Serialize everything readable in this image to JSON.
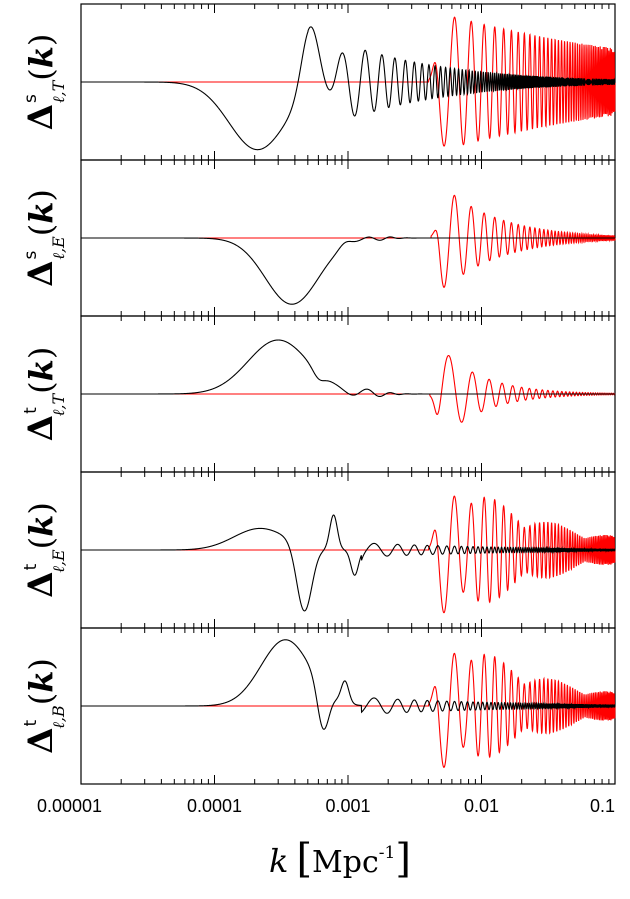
{
  "chart_data": {
    "type": "line",
    "x_scale": "log",
    "xlim": [
      1e-05,
      0.1
    ],
    "x_ticks": [
      "0.00001",
      "0.0001",
      "0.001",
      "0.01",
      "0.1"
    ],
    "xlabel": {
      "var": "k",
      "unit": "Mpc",
      "unit_sup": "-1"
    },
    "colors": {
      "series_black": "#000000",
      "series_red": "#ff0000",
      "frame": "#000000"
    },
    "panels": [
      {
        "label": "Δ",
        "sup": "s",
        "sub": "ℓ,T",
        "arg": "(k)",
        "series": [
          {
            "color": "#000000",
            "envelope": {
              "dip_k": 0.00021,
              "dip_depth": -0.94,
              "peak_k": 0.00052,
              "peak_amp": 0.92,
              "oscillation_start_k": 0.0008,
              "decay_to_k": 0.1
            }
          },
          {
            "color": "#ff0000",
            "envelope": {
              "onset_k": 0.0045,
              "dip_depth": -0.2,
              "max_amp": 0.9,
              "decay_to_k": 0.1
            }
          }
        ]
      },
      {
        "label": "Δ",
        "sup": "s",
        "sub": "ℓ,E",
        "arg": "(k)",
        "series": [
          {
            "color": "#000000",
            "envelope": {
              "dip_k": 0.00038,
              "dip_depth": -0.92,
              "peak_k": 0.00095,
              "peak_amp": 0.06,
              "decay_to_k": 0.003
            }
          },
          {
            "color": "#ff0000",
            "envelope": {
              "onset_k": 0.0047,
              "dip_depth": -0.9,
              "max_amp": 0.8,
              "decay_to_k": 0.05
            }
          }
        ]
      },
      {
        "label": "Δ",
        "sup": "t",
        "sub": "ℓ,T",
        "arg": "(k)",
        "series": [
          {
            "color": "#000000",
            "envelope": {
              "peak_k": 0.0003,
              "peak_amp": 0.75,
              "dip_k": 0.0006,
              "dip_depth": -0.1,
              "decay_to_k": 0.003
            }
          },
          {
            "color": "#ff0000",
            "envelope": {
              "onset_k": 0.0046,
              "peak_amp": 0.72,
              "dip_depth": -0.48,
              "decay_to_k": 0.015
            }
          }
        ]
      },
      {
        "label": "Δ",
        "sup": "t",
        "sub": "ℓ,E",
        "arg": "(k)",
        "series": [
          {
            "color": "#000000",
            "envelope": {
              "peak_k": 0.00022,
              "peak_amp": 0.3,
              "dip_k": 0.00047,
              "dip_depth": -0.92,
              "peak2_k": 0.00078,
              "peak2_amp": 0.48,
              "decay_to_k": 0.05
            }
          },
          {
            "color": "#ff0000",
            "envelope": {
              "onset_k": 0.0045,
              "dip_depth": -0.92,
              "max_amp": 0.92,
              "decay_to_k": 0.1
            }
          }
        ]
      },
      {
        "label": "Δ",
        "sup": "t",
        "sub": "ℓ,B",
        "arg": "(k)",
        "series": [
          {
            "color": "#000000",
            "envelope": {
              "peak_k": 0.00034,
              "peak_amp": 0.92,
              "dip_k": 0.00065,
              "dip_depth": -0.6,
              "peak2_k": 0.00095,
              "peak2_amp": 0.3,
              "decay_to_k": 0.05
            }
          },
          {
            "color": "#ff0000",
            "envelope": {
              "onset_k": 0.0045,
              "dip_depth": -0.92,
              "max_amp": 0.9,
              "decay_to_k": 0.1
            }
          }
        ]
      }
    ]
  }
}
